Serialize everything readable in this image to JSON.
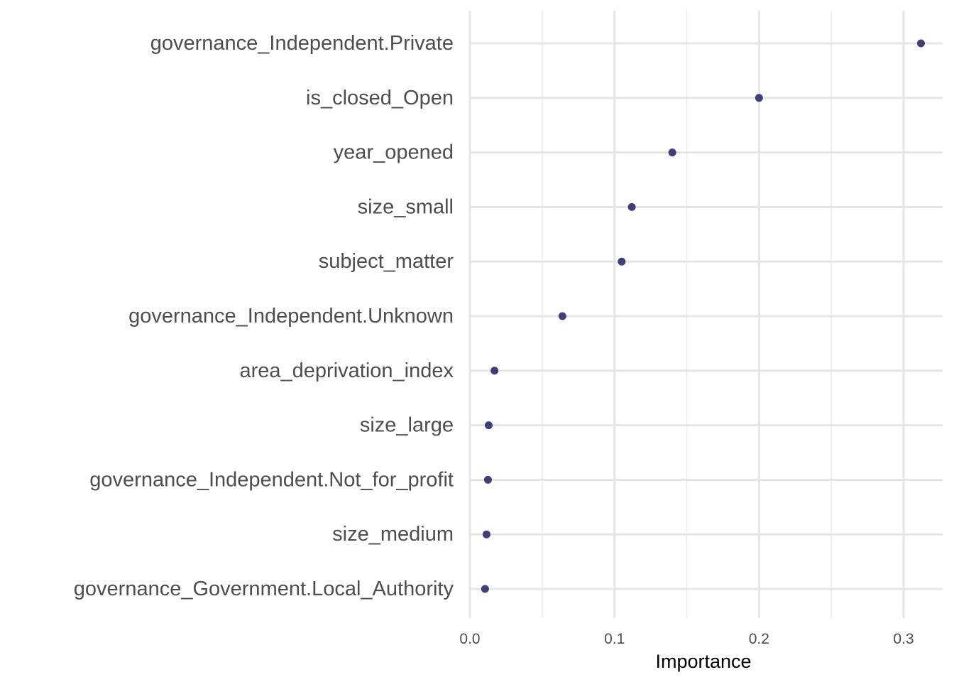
{
  "chart_data": {
    "type": "scatter",
    "title": "",
    "xlabel": "Importance",
    "ylabel": "",
    "xlim": [
      0,
      0.327
    ],
    "x_ticks": [
      0.0,
      0.1,
      0.2,
      0.3
    ],
    "x_tick_labels": [
      "0.0",
      "0.1",
      "0.2",
      "0.3"
    ],
    "grid": true,
    "legend": "none",
    "point_color": "#2b2a6b",
    "categories": [
      "governance_Independent.Private",
      "is_closed_Open",
      "year_opened",
      "size_small",
      "subject_matter",
      "governance_Independent.Unknown",
      "area_deprivation_index",
      "size_large",
      "governance_Independent.Not_for_profit",
      "size_medium",
      "governance_Government.Local_Authority"
    ],
    "values": [
      0.312,
      0.2,
      0.14,
      0.112,
      0.105,
      0.064,
      0.017,
      0.013,
      0.0125,
      0.0115,
      0.0105
    ]
  }
}
